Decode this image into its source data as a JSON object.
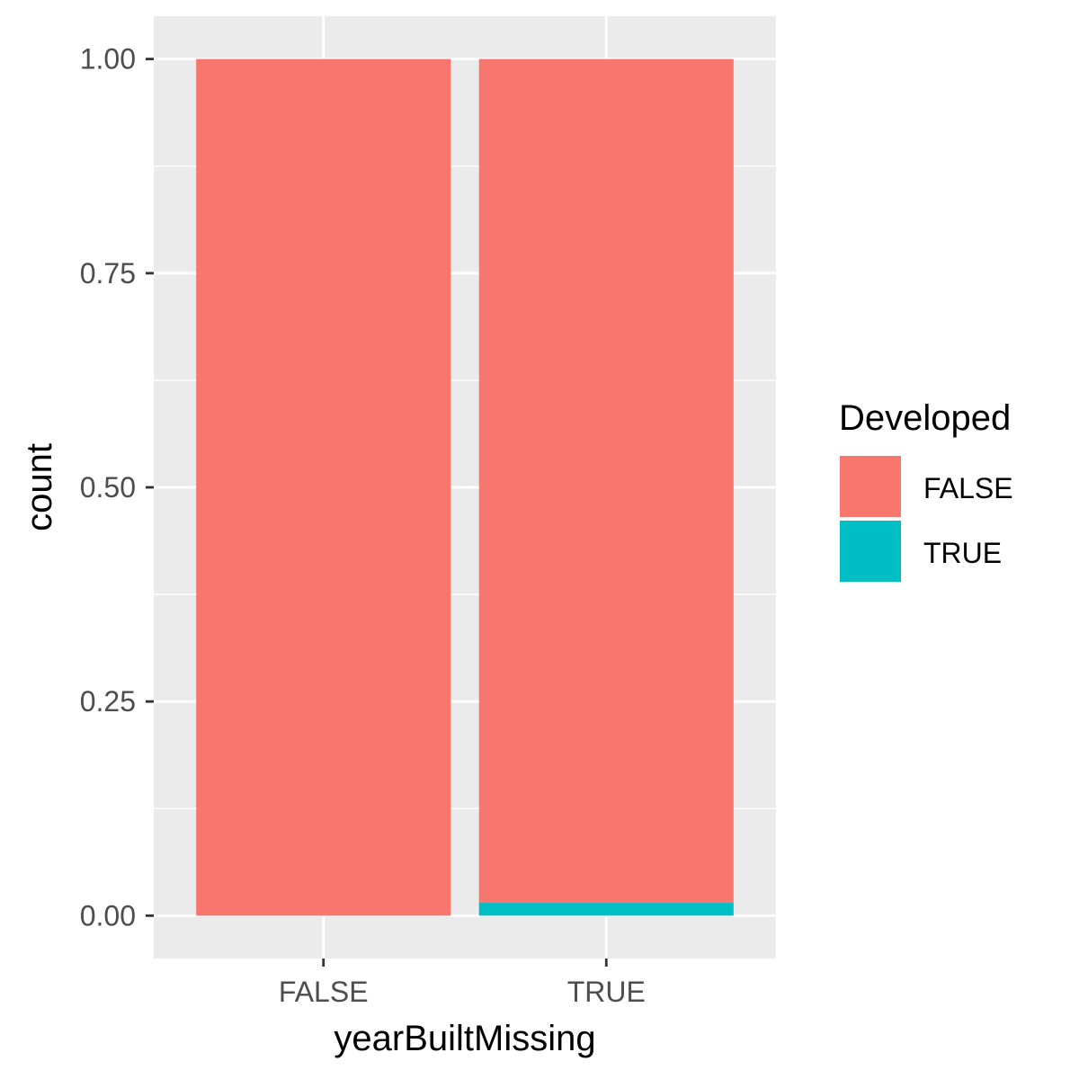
{
  "chart_data": {
    "type": "bar",
    "stacked": true,
    "categories": [
      "FALSE",
      "TRUE"
    ],
    "series": [
      {
        "name": "FALSE",
        "values": [
          1.0,
          0.985
        ],
        "color": "#F8766D"
      },
      {
        "name": "TRUE",
        "values": [
          0.0,
          0.015
        ],
        "color": "#00BFC4"
      }
    ],
    "xlabel": "yearBuiltMissing",
    "ylabel": "count",
    "ylim": [
      -0.05,
      1.05
    ],
    "yticks": [
      0.0,
      0.25,
      0.5,
      0.75,
      1.0
    ],
    "ytick_labels": [
      "0.00",
      "0.25",
      "0.50",
      "0.75",
      "1.00"
    ],
    "legend": {
      "title": "Developed",
      "position": "right",
      "entries": [
        "FALSE",
        "TRUE"
      ]
    },
    "grid": true,
    "theme": {
      "panel_background": "#EBEBEB",
      "grid_color": "#FFFFFF",
      "tick_color": "#333333"
    }
  }
}
